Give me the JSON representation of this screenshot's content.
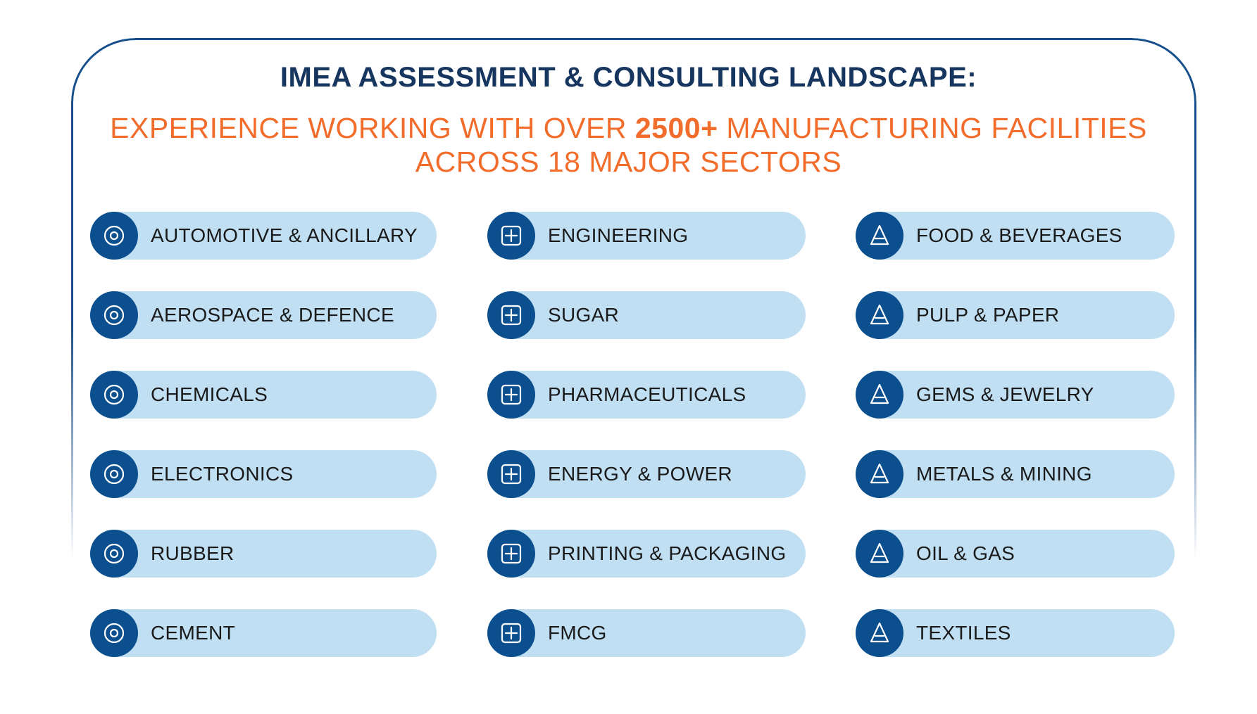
{
  "header": {
    "title": "IMEA ASSESSMENT & CONSULTING LANDSCAPE:",
    "subtitle_pre": "EXPERIENCE WORKING WITH OVER ",
    "subtitle_bold": "2500+",
    "subtitle_post": " MANUFACTURING FACILITIES",
    "subtitle_line2": "ACROSS 18 MAJOR SECTORS"
  },
  "colors": {
    "navy": "#16355f",
    "orange": "#f26d2b",
    "pill": "#c1dff3",
    "circle": "#0b4f8f"
  },
  "sectors": [
    {
      "label": "AUTOMOTIVE & ANCILLARY",
      "icon": "car-icon"
    },
    {
      "label": "ENGINEERING",
      "icon": "gear-wrench-icon"
    },
    {
      "label": "FOOD & BEVERAGES",
      "icon": "food-drink-icon"
    },
    {
      "label": "AEROSPACE & DEFENCE",
      "icon": "jet-icon"
    },
    {
      "label": "SUGAR",
      "icon": "sugar-cubes-icon"
    },
    {
      "label": "PULP & PAPER",
      "icon": "paper-roll-icon"
    },
    {
      "label": "CHEMICALS",
      "icon": "flask-icon"
    },
    {
      "label": "PHARMACEUTICALS",
      "icon": "pills-icon"
    },
    {
      "label": "GEMS & JEWELRY",
      "icon": "diamond-icon"
    },
    {
      "label": "ELECTRONICS",
      "icon": "chip-icon"
    },
    {
      "label": "ENERGY & POWER",
      "icon": "lightning-gear-icon"
    },
    {
      "label": "METALS & MINING",
      "icon": "pickaxe-icon"
    },
    {
      "label": "RUBBER",
      "icon": "tire-icon"
    },
    {
      "label": "PRINTING & PACKAGING",
      "icon": "printer-box-icon"
    },
    {
      "label": "OIL & GAS",
      "icon": "oil-rig-icon"
    },
    {
      "label": "CEMENT",
      "icon": "cement-bag-icon"
    },
    {
      "label": "FMCG",
      "icon": "bottles-icon"
    },
    {
      "label": "TEXTILES",
      "icon": "thread-spool-icon"
    }
  ]
}
